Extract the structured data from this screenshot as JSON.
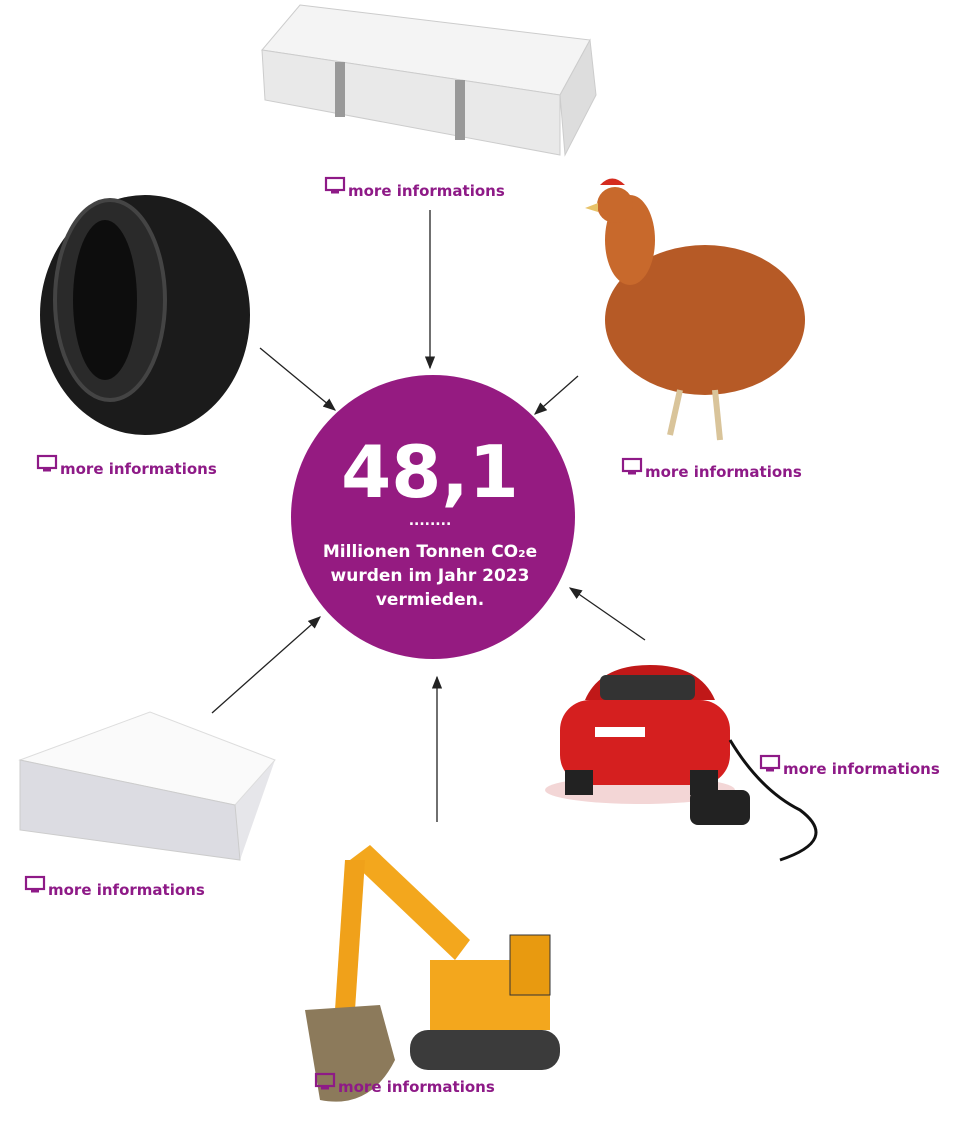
{
  "center": {
    "value": "48,1",
    "dots": "........",
    "lines": [
      "Millionen Tonnen CO₂e",
      "wurden im Jahr 2023",
      "vermieden."
    ]
  },
  "links": [
    "more informations",
    "more informations",
    "more informations",
    "more informations",
    "more informations",
    "more informations"
  ]
}
